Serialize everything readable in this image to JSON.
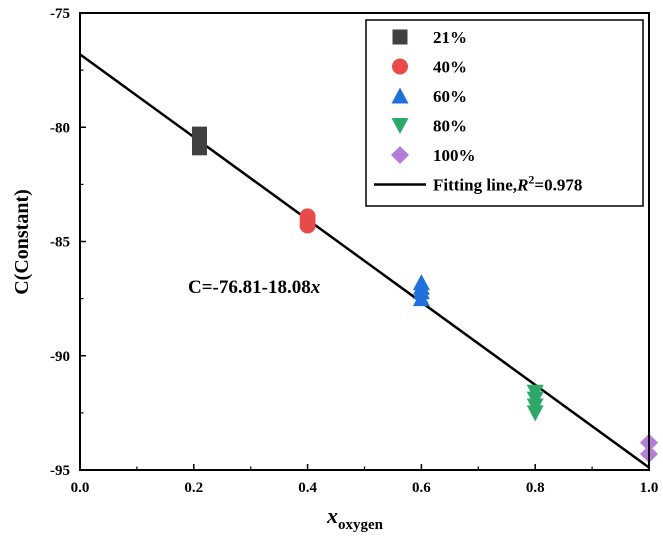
{
  "chart_data": {
    "type": "scatter",
    "xlabel": "x",
    "xlabel_subscript": "oxygen",
    "ylabel": "C(Constant)",
    "xlim": [
      0.0,
      1.0
    ],
    "ylim": [
      -95,
      -75
    ],
    "x_ticks": [
      "0.0",
      "0.2",
      "0.4",
      "0.6",
      "0.8",
      "1.0"
    ],
    "y_ticks": [
      "-75",
      "-80",
      "-85",
      "-90",
      "-95"
    ],
    "grid": false,
    "legend_position": "top-right",
    "series": [
      {
        "name": "21%",
        "marker": "square",
        "color": "#404040",
        "points": [
          [
            0.21,
            -80.3
          ],
          [
            0.21,
            -80.6
          ],
          [
            0.21,
            -80.9
          ]
        ]
      },
      {
        "name": "40%",
        "marker": "circle",
        "color": "#e84a4a",
        "points": [
          [
            0.4,
            -83.9
          ],
          [
            0.4,
            -84.1
          ],
          [
            0.4,
            -84.3
          ]
        ]
      },
      {
        "name": "60%",
        "marker": "triangle-up",
        "color": "#1f6fdc",
        "points": [
          [
            0.6,
            -86.8
          ],
          [
            0.6,
            -87.0
          ],
          [
            0.6,
            -87.2
          ],
          [
            0.6,
            -87.5
          ]
        ]
      },
      {
        "name": "80%",
        "marker": "triangle-down",
        "color": "#2ea86a",
        "points": [
          [
            0.8,
            -91.6
          ],
          [
            0.8,
            -91.9
          ],
          [
            0.8,
            -92.2
          ],
          [
            0.8,
            -92.5
          ]
        ]
      },
      {
        "name": "100%",
        "marker": "diamond",
        "color": "#b47ed6",
        "points": [
          [
            1.0,
            -93.8
          ],
          [
            1.0,
            -94.3
          ]
        ]
      }
    ],
    "fit": {
      "legend_prefix": "Fitting line,",
      "legend_italic": "R",
      "legend_sup": "2",
      "legend_suffix": "=0.978",
      "intercept": -76.81,
      "slope": -18.08,
      "x_range": [
        0.0,
        1.0
      ],
      "color": "#000000"
    },
    "annotation": {
      "prefix": "C=-76.81-18.08",
      "italic": "x"
    }
  }
}
